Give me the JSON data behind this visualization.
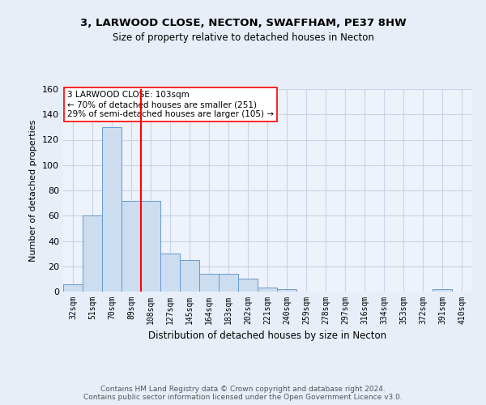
{
  "title1": "3, LARWOOD CLOSE, NECTON, SWAFFHAM, PE37 8HW",
  "title2": "Size of property relative to detached houses in Necton",
  "xlabel": "Distribution of detached houses by size in Necton",
  "ylabel": "Number of detached properties",
  "bar_labels": [
    "32sqm",
    "51sqm",
    "70sqm",
    "89sqm",
    "108sqm",
    "127sqm",
    "145sqm",
    "164sqm",
    "183sqm",
    "202sqm",
    "221sqm",
    "240sqm",
    "259sqm",
    "278sqm",
    "297sqm",
    "316sqm",
    "334sqm",
    "353sqm",
    "372sqm",
    "391sqm",
    "410sqm"
  ],
  "bar_values": [
    6,
    60,
    130,
    72,
    72,
    30,
    25,
    14,
    14,
    10,
    3,
    2,
    0,
    0,
    0,
    0,
    0,
    0,
    0,
    2,
    0
  ],
  "bar_color": "#ccddf0",
  "bar_edgecolor": "#6699cc",
  "vline_x": 3.5,
  "vline_color": "red",
  "annotation_text": "3 LARWOOD CLOSE: 103sqm\n← 70% of detached houses are smaller (251)\n29% of semi-detached houses are larger (105) →",
  "annotation_box_color": "white",
  "annotation_box_edgecolor": "red",
  "ylim": [
    0,
    160
  ],
  "yticks": [
    0,
    20,
    40,
    60,
    80,
    100,
    120,
    140,
    160
  ],
  "footer_text": "Contains HM Land Registry data © Crown copyright and database right 2024.\nContains public sector information licensed under the Open Government Licence v3.0.",
  "bg_color": "#e8eef8",
  "plot_bg_color": "#edf2fb",
  "grid_color": "#c8d4e8"
}
